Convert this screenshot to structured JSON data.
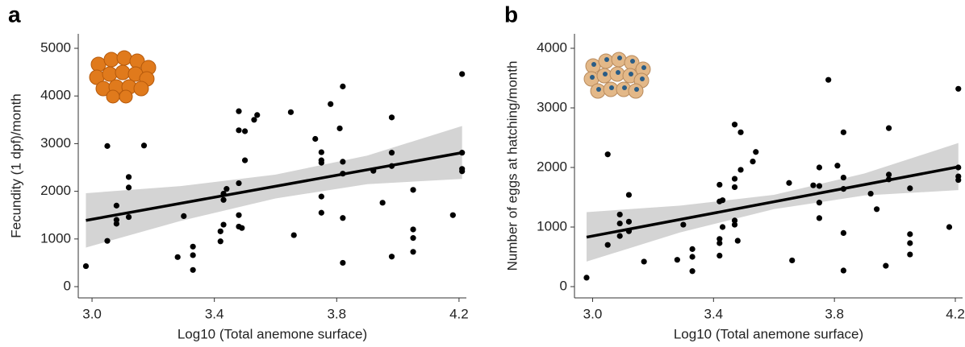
{
  "chart_data": [
    {
      "type": "scatter",
      "panel_label": "a",
      "x_label": "Log10 (Total anemone surface)",
      "y_label": "Fecundity (1 dpf)/month",
      "color": "#000000",
      "line_color": "#000000",
      "band_color": "#d4d4d4",
      "xlim": [
        2.955,
        4.224
      ],
      "xticks": [
        {
          "value": 3.0,
          "label": "3.0"
        },
        3.4,
        3.8,
        4.2
      ],
      "ylim": [
        -236,
        5304
      ],
      "yticks": [
        0,
        1000,
        2000,
        3000,
        4000,
        5000
      ],
      "x": [
        2.98,
        3.05,
        3.05,
        3.08,
        3.08,
        3.08,
        3.12,
        3.12,
        3.12,
        3.17,
        3.28,
        3.3,
        3.33,
        3.33,
        3.33,
        3.42,
        3.42,
        3.43,
        3.43,
        3.43,
        3.44,
        3.48,
        3.48,
        3.48,
        3.48,
        3.48,
        3.49,
        3.5,
        3.5,
        3.53,
        3.54,
        3.65,
        3.66,
        3.73,
        3.75,
        3.75,
        3.75,
        3.75,
        3.75,
        3.78,
        3.81,
        3.82,
        3.82,
        3.82,
        3.82,
        3.82,
        3.92,
        3.95,
        3.98,
        3.98,
        3.98,
        3.98,
        4.05,
        4.05,
        4.05,
        4.05,
        4.18,
        4.21,
        4.21,
        4.21,
        4.21
      ],
      "values": [
        430,
        2950,
        960,
        1700,
        1400,
        1320,
        2300,
        2080,
        1460,
        2960,
        620,
        1480,
        840,
        660,
        350,
        1160,
        950,
        1950,
        1820,
        1300,
        2050,
        3680,
        3280,
        2170,
        1500,
        1260,
        1230,
        3260,
        2650,
        3500,
        3600,
        3660,
        1080,
        3100,
        2820,
        2650,
        2600,
        1890,
        1550,
        3830,
        3320,
        4200,
        2620,
        2370,
        1440,
        500,
        2430,
        1760,
        3550,
        2810,
        2530,
        630,
        2030,
        1200,
        1020,
        730,
        1500,
        4460,
        2810,
        2470,
        2420
      ],
      "fit_x": [
        2.98,
        4.21
      ],
      "fit_values": [
        1390,
        2810
      ],
      "band_x": [
        2.98,
        3.29,
        3.6,
        3.9,
        4.21
      ],
      "band_lower": [
        820,
        1380,
        1850,
        2150,
        2260
      ],
      "band_upper": [
        1960,
        2110,
        2350,
        2750,
        3370
      ]
    },
    {
      "type": "scatter",
      "panel_label": "b",
      "x_label": "Log10 (Total anemone surface)",
      "y_label": "Number of eggs at hatching/month",
      "color": "#000000",
      "line_color": "#000000",
      "band_color": "#d4d4d4",
      "xlim": [
        2.94,
        4.224
      ],
      "xticks": [
        {
          "value": 3.0,
          "label": "3.0"
        },
        3.4,
        3.8,
        4.2
      ],
      "ylim": [
        -189,
        4243
      ],
      "yticks": [
        0,
        1000,
        2000,
        3000,
        4000
      ],
      "x": [
        2.98,
        3.05,
        3.05,
        3.09,
        3.09,
        3.09,
        3.12,
        3.12,
        3.12,
        3.17,
        3.28,
        3.3,
        3.33,
        3.33,
        3.33,
        3.42,
        3.42,
        3.42,
        3.42,
        3.42,
        3.43,
        3.43,
        3.47,
        3.47,
        3.47,
        3.47,
        3.47,
        3.48,
        3.49,
        3.49,
        3.54,
        3.53,
        3.65,
        3.66,
        3.73,
        3.75,
        3.75,
        3.75,
        3.75,
        3.78,
        3.81,
        3.83,
        3.83,
        3.83,
        3.83,
        3.83,
        3.92,
        3.94,
        3.98,
        3.98,
        3.98,
        3.97,
        4.05,
        4.05,
        4.05,
        4.05,
        4.18,
        4.21,
        4.21,
        4.21,
        4.21
      ],
      "values": [
        150,
        2220,
        700,
        1210,
        1060,
        850,
        1540,
        1090,
        930,
        420,
        450,
        1040,
        630,
        500,
        260,
        1710,
        1430,
        800,
        730,
        520,
        1450,
        1000,
        2720,
        1810,
        1670,
        1110,
        1040,
        770,
        2590,
        1960,
        2260,
        2100,
        1740,
        440,
        1700,
        2000,
        1690,
        1410,
        1150,
        3470,
        2030,
        2590,
        1830,
        1640,
        900,
        270,
        1560,
        1300,
        2660,
        1880,
        1800,
        350,
        1650,
        880,
        730,
        540,
        1000,
        3320,
        2000,
        1850,
        1790
      ],
      "fit_x": [
        2.98,
        4.21
      ],
      "fit_values": [
        830,
        2010
      ],
      "band_x": [
        2.98,
        3.29,
        3.6,
        3.9,
        4.21
      ],
      "band_lower": [
        420,
        910,
        1300,
        1530,
        1620
      ],
      "band_upper": [
        1250,
        1360,
        1540,
        1900,
        2410
      ]
    }
  ]
}
